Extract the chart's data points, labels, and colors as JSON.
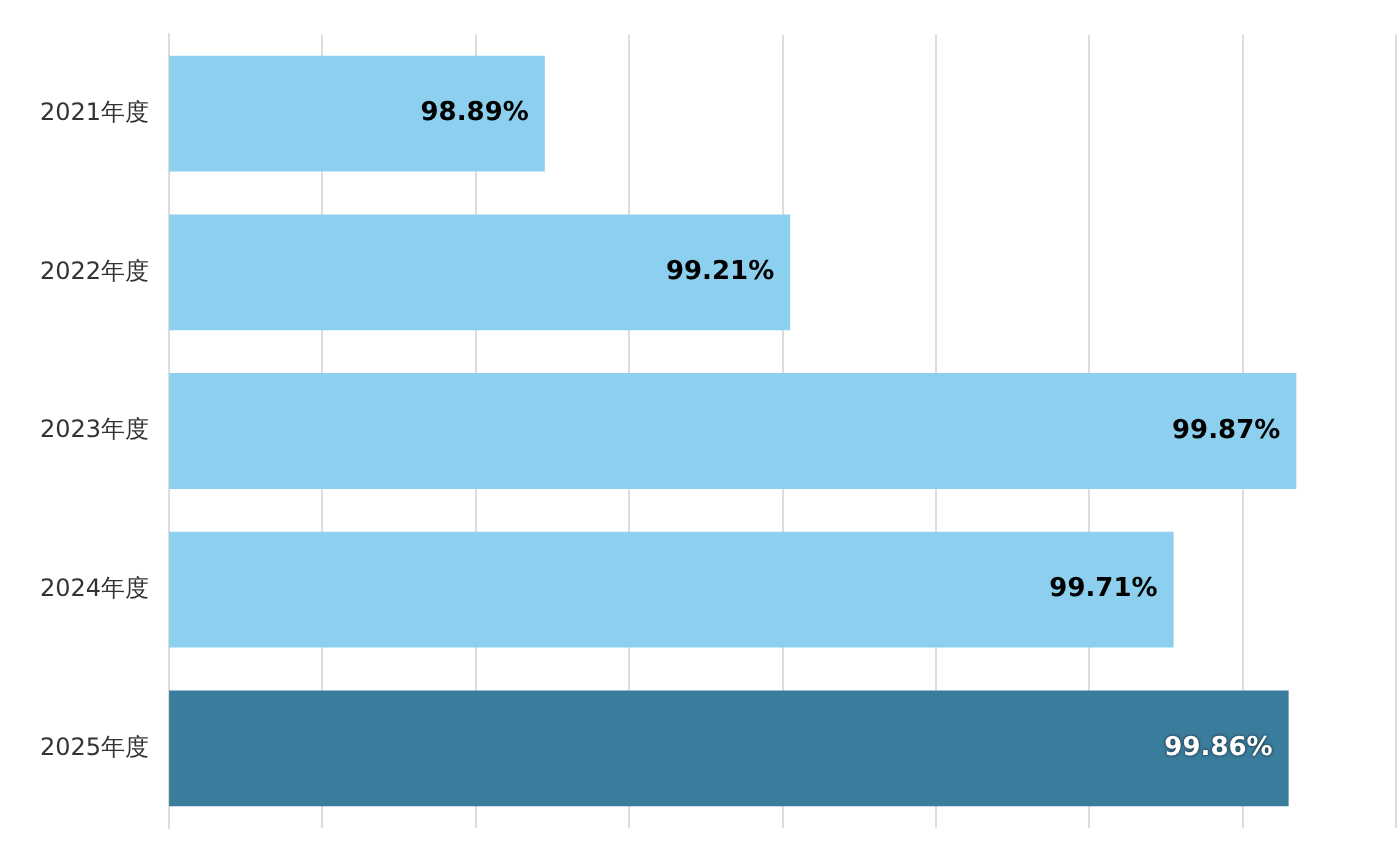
{
  "chart_data": {
    "type": "bar",
    "orientation": "horizontal",
    "categories": [
      "2021年度",
      "2022年度",
      "2023年度",
      "2024年度",
      "2025年度"
    ],
    "values": [
      98.89,
      99.21,
      99.87,
      99.71,
      99.86
    ],
    "value_labels": [
      "98.89%",
      "99.21%",
      "99.87%",
      "99.71%",
      "99.86%"
    ],
    "colors": [
      "#8ccfee",
      "#8ccfee",
      "#8ccfee",
      "#8ccfee",
      "#3a7c9c"
    ],
    "xlim": [
      98.4,
      100.0
    ],
    "xticks": [
      {
        "value": 98.4,
        "label": null
      },
      {
        "value": 98.6,
        "label": null
      },
      {
        "value": 98.8,
        "label": null
      },
      {
        "value": 99.0,
        "label": null
      },
      {
        "value": 99.2,
        "label": null
      },
      {
        "value": 99.4,
        "label": null
      },
      {
        "value": 99.6,
        "label": null
      },
      {
        "value": 99.8,
        "label": null
      },
      {
        "value": 100.0,
        "label": null
      }
    ],
    "tick_labels": "y",
    "grid": "x",
    "legend": false
  }
}
